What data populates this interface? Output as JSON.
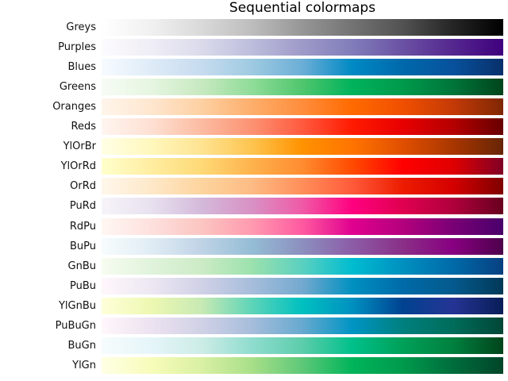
{
  "chart_data": {
    "type": "heatmap",
    "title": "Sequential colormaps",
    "xlabel": "",
    "ylabel": "",
    "axis": "off",
    "colormaps": [
      {
        "name": "Greys",
        "stops": [
          "#ffffff",
          "#f0f0f0",
          "#d9d9d9",
          "#bdbdbd",
          "#969696",
          "#737373",
          "#525252",
          "#252525",
          "#000000"
        ]
      },
      {
        "name": "Purples",
        "stops": [
          "#fcfbfd",
          "#efedf5",
          "#dadaeb",
          "#bcbddc",
          "#9e9ac8",
          "#807dba",
          "#6a51a3",
          "#54278f",
          "#3f007d"
        ]
      },
      {
        "name": "Blues",
        "stops": [
          "#f7fbff",
          "#deebf7",
          "#c6dbef",
          "#9ecae1",
          "#6baed6",
          "#0089c4",
          "#0069ab",
          "#08519c",
          "#08306b"
        ]
      },
      {
        "name": "Greens",
        "stops": [
          "#f7fcf5",
          "#e5f5e0",
          "#c7e9c0",
          "#8fdc98",
          "#4fc66d",
          "#00b25c",
          "#009a4c",
          "#00753a",
          "#00441b"
        ]
      },
      {
        "name": "Oranges",
        "stops": [
          "#fff5eb",
          "#fee6ce",
          "#fdd0a2",
          "#fdae6b",
          "#ff8d3c",
          "#ff6a00",
          "#f04f00",
          "#c43a06",
          "#7f2704"
        ]
      },
      {
        "name": "Reds",
        "stops": [
          "#fff5f0",
          "#fee0d2",
          "#fcbba1",
          "#fc9272",
          "#ff5a3f",
          "#ff1a00",
          "#e80000",
          "#b50000",
          "#670000"
        ]
      },
      {
        "name": "YlOrBr",
        "stops": [
          "#ffffe5",
          "#fff7bc",
          "#fee391",
          "#fec44f",
          "#ff9200",
          "#ff7400",
          "#e04f00",
          "#a93600",
          "#662506"
        ]
      },
      {
        "name": "YlOrRd",
        "stops": [
          "#ffffcc",
          "#ffeda0",
          "#fed976",
          "#feb24c",
          "#ff8c30",
          "#ff4a00",
          "#ff0000",
          "#e00000",
          "#800026"
        ]
      },
      {
        "name": "OrRd",
        "stops": [
          "#fff7ec",
          "#fee8c8",
          "#fdd49e",
          "#fdbb84",
          "#ff8e59",
          "#ff5a3a",
          "#ed1c00",
          "#d40000",
          "#7f0000"
        ]
      },
      {
        "name": "PuRd",
        "stops": [
          "#f7f4f9",
          "#e7e1ef",
          "#d4b9da",
          "#d891c4",
          "#f05aa6",
          "#ff0080",
          "#e0004f",
          "#b0003c",
          "#67001f"
        ]
      },
      {
        "name": "RdPu",
        "stops": [
          "#fff7f3",
          "#fde0dd",
          "#fcc5c0",
          "#ff9ab0",
          "#ff5aa0",
          "#e0008f",
          "#b4007d",
          "#7a0076",
          "#49006a"
        ]
      },
      {
        "name": "BuPu",
        "stops": [
          "#f7fcfd",
          "#e0ecf4",
          "#bfd3e6",
          "#94bdd5",
          "#8c8fbe",
          "#8c5ca7",
          "#8a2f87",
          "#880081",
          "#4d004b"
        ]
      },
      {
        "name": "GnBu",
        "stops": [
          "#f7fcf0",
          "#e0f3db",
          "#ccebc5",
          "#9be1ad",
          "#5ad0c0",
          "#00bcd0",
          "#0090c0",
          "#006aa8",
          "#084081"
        ]
      },
      {
        "name": "PuBu",
        "stops": [
          "#fff7fb",
          "#ece7f2",
          "#d0d1e6",
          "#a6bddb",
          "#74a9cf",
          "#0090c0",
          "#006aa8",
          "#045a8d",
          "#023858"
        ]
      },
      {
        "name": "YlGnBu",
        "stops": [
          "#ffffd9",
          "#edf8b1",
          "#c7e9b4",
          "#5dd4b8",
          "#00c0c0",
          "#0090c0",
          "#004290",
          "#253494",
          "#081d58"
        ]
      },
      {
        "name": "PuBuGn",
        "stops": [
          "#fff7fb",
          "#ece2f0",
          "#d0d1e6",
          "#a6bddb",
          "#67a9cf",
          "#0094c4",
          "#00807e",
          "#006c5a",
          "#014636"
        ]
      },
      {
        "name": "BuGn",
        "stops": [
          "#f7fcfd",
          "#e5f5f9",
          "#ccece6",
          "#8fdcce",
          "#5ccdab",
          "#00c08a",
          "#00a058",
          "#00803e",
          "#00441b"
        ]
      },
      {
        "name": "YlGn",
        "stops": [
          "#ffffe5",
          "#f7fcb9",
          "#d9f0a3",
          "#a8df88",
          "#5dc878",
          "#00b45a",
          "#009a4c",
          "#006d3c",
          "#004529"
        ]
      }
    ]
  }
}
